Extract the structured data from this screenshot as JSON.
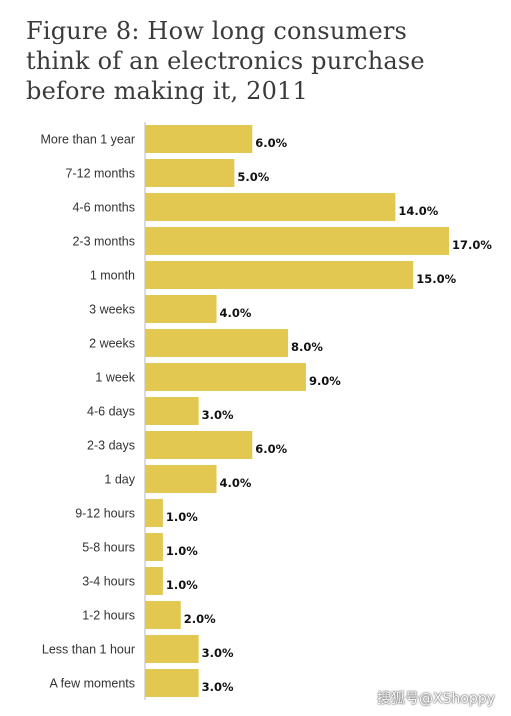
{
  "title_lines": [
    "Figure 8: How long consumers",
    "think of an electronics purchase",
    "before making it, 2011"
  ],
  "watermark": "搜狐号@XShoppy",
  "colors": {
    "bar": "#e2c851",
    "axis": "#bbbbbb"
  },
  "chart_data": {
    "type": "bar",
    "orientation": "horizontal",
    "title": "Figure 8: How long consumers think of an electronics purchase before making it, 2011",
    "xlabel": "",
    "ylabel": "",
    "xlim": [
      0,
      17
    ],
    "grid": false,
    "legend": "none",
    "categories": [
      "More than 1 year",
      "7-12 months",
      "4-6 months",
      "2-3 months",
      "1 month",
      "3 weeks",
      "2 weeks",
      "1 week",
      "4-6 days",
      "2-3 days",
      "1 day",
      "9-12 hours",
      "5-8 hours",
      "3-4 hours",
      "1-2 hours",
      "Less than 1 hour",
      "A few moments"
    ],
    "values": [
      6.0,
      5.0,
      14.0,
      17.0,
      15.0,
      4.0,
      8.0,
      9.0,
      3.0,
      6.0,
      4.0,
      1.0,
      1.0,
      1.0,
      2.0,
      3.0,
      3.0
    ],
    "value_labels": [
      "6.0%",
      "5.0%",
      "14.0%",
      "17.0%",
      "15.0%",
      "4.0%",
      "8.0%",
      "9.0%",
      "3.0%",
      "6.0%",
      "4.0%",
      "1.0%",
      "1.0%",
      "1.0%",
      "2.0%",
      "3.0%",
      "3.0%"
    ],
    "unit": "%"
  }
}
